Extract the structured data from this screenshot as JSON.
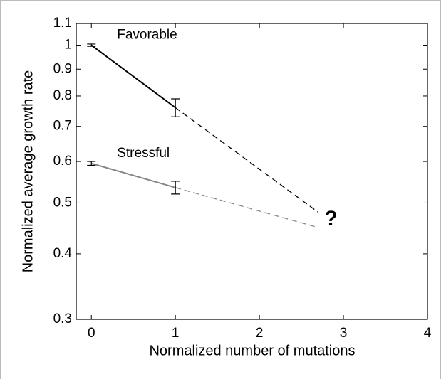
{
  "chart_data": {
    "type": "line",
    "xlabel": "Normalized number of mutations",
    "ylabel": "Normalized average growth rate",
    "xlim": [
      -0.18,
      4
    ],
    "xticks": [
      0,
      1,
      2,
      3,
      4
    ],
    "ylim": [
      0.3,
      1.1
    ],
    "yticks": [
      0.3,
      0.4,
      0.5,
      0.6,
      0.7,
      0.8,
      0.9,
      1,
      1.1
    ],
    "log_y": true,
    "series": [
      {
        "name": "Favorable",
        "color": "#000000",
        "x": [
          0,
          1
        ],
        "values": [
          1,
          0.76
        ],
        "errors": [
          0.005,
          0.03
        ],
        "projection": {
          "x": [
            1,
            2.7
          ],
          "values": [
            0.76,
            0.48
          ]
        }
      },
      {
        "name": "Stressful",
        "color": "#888888",
        "x": [
          0,
          1
        ],
        "values": [
          0.595,
          0.535
        ],
        "errors": [
          0.005,
          0.015
        ],
        "projection": {
          "x": [
            1,
            2.7
          ],
          "values": [
            0.535,
            0.449
          ]
        }
      }
    ],
    "annotation": "?"
  }
}
